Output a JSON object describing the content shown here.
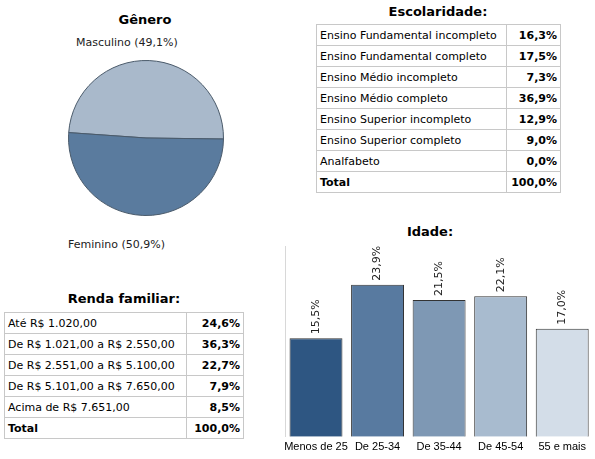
{
  "chart_data": [
    {
      "type": "pie",
      "title": "Gênero",
      "categories": [
        "Masculino (49,1%)",
        "Feminino (50,9%)"
      ],
      "values": [
        49.1,
        50.9
      ],
      "colors": [
        "#a9b9cb",
        "#5a7b9e"
      ]
    },
    {
      "type": "bar",
      "title": "Idade:",
      "categories": [
        "Menos de 25",
        "De 25-34",
        "De 35-44",
        "De 45-54",
        "55 e mais"
      ],
      "values": [
        15.5,
        23.9,
        21.5,
        22.1,
        17.0
      ],
      "value_labels": [
        "15,5%",
        "23,9%",
        "21,5%",
        "22,1%",
        "17,0%"
      ],
      "colors": [
        "#2e5682",
        "#587aa0",
        "#7e98b4",
        "#a8bbcf",
        "#d3dde8"
      ],
      "ylim": [
        0,
        30
      ],
      "data_labels": true,
      "tick_labels": "x",
      "grid": false
    }
  ],
  "tables": [
    {
      "title": "Escolaridade:",
      "rows": [
        [
          "Ensino Fundamental incompleto",
          "16,3%"
        ],
        [
          "Ensino Fundamental completo",
          "17,5%"
        ],
        [
          "Ensino Médio incompleto",
          "7,3%"
        ],
        [
          "Ensino Médio completo",
          "36,9%"
        ],
        [
          "Ensino Superior incompleto",
          "12,9%"
        ],
        [
          "Ensino Superior completo",
          "9,0%"
        ],
        [
          "Analfabeto",
          "0,0%"
        ],
        [
          "Total",
          "100,0%"
        ]
      ]
    },
    {
      "title": "Renda familiar:",
      "rows": [
        [
          "Até R$ 1.020,00",
          "24,6%"
        ],
        [
          "De R$ 1.021,00 a R$ 2.550,00",
          "36,3%"
        ],
        [
          "De R$ 2.551,00 a R$ 5.100,00",
          "22,7%"
        ],
        [
          "De R$ 5.101,00 a R$ 7.650,00",
          "7,9%"
        ],
        [
          "Acima de R$ 7.651,00",
          "8,5%"
        ],
        [
          "Total",
          "100,0%"
        ]
      ]
    }
  ]
}
